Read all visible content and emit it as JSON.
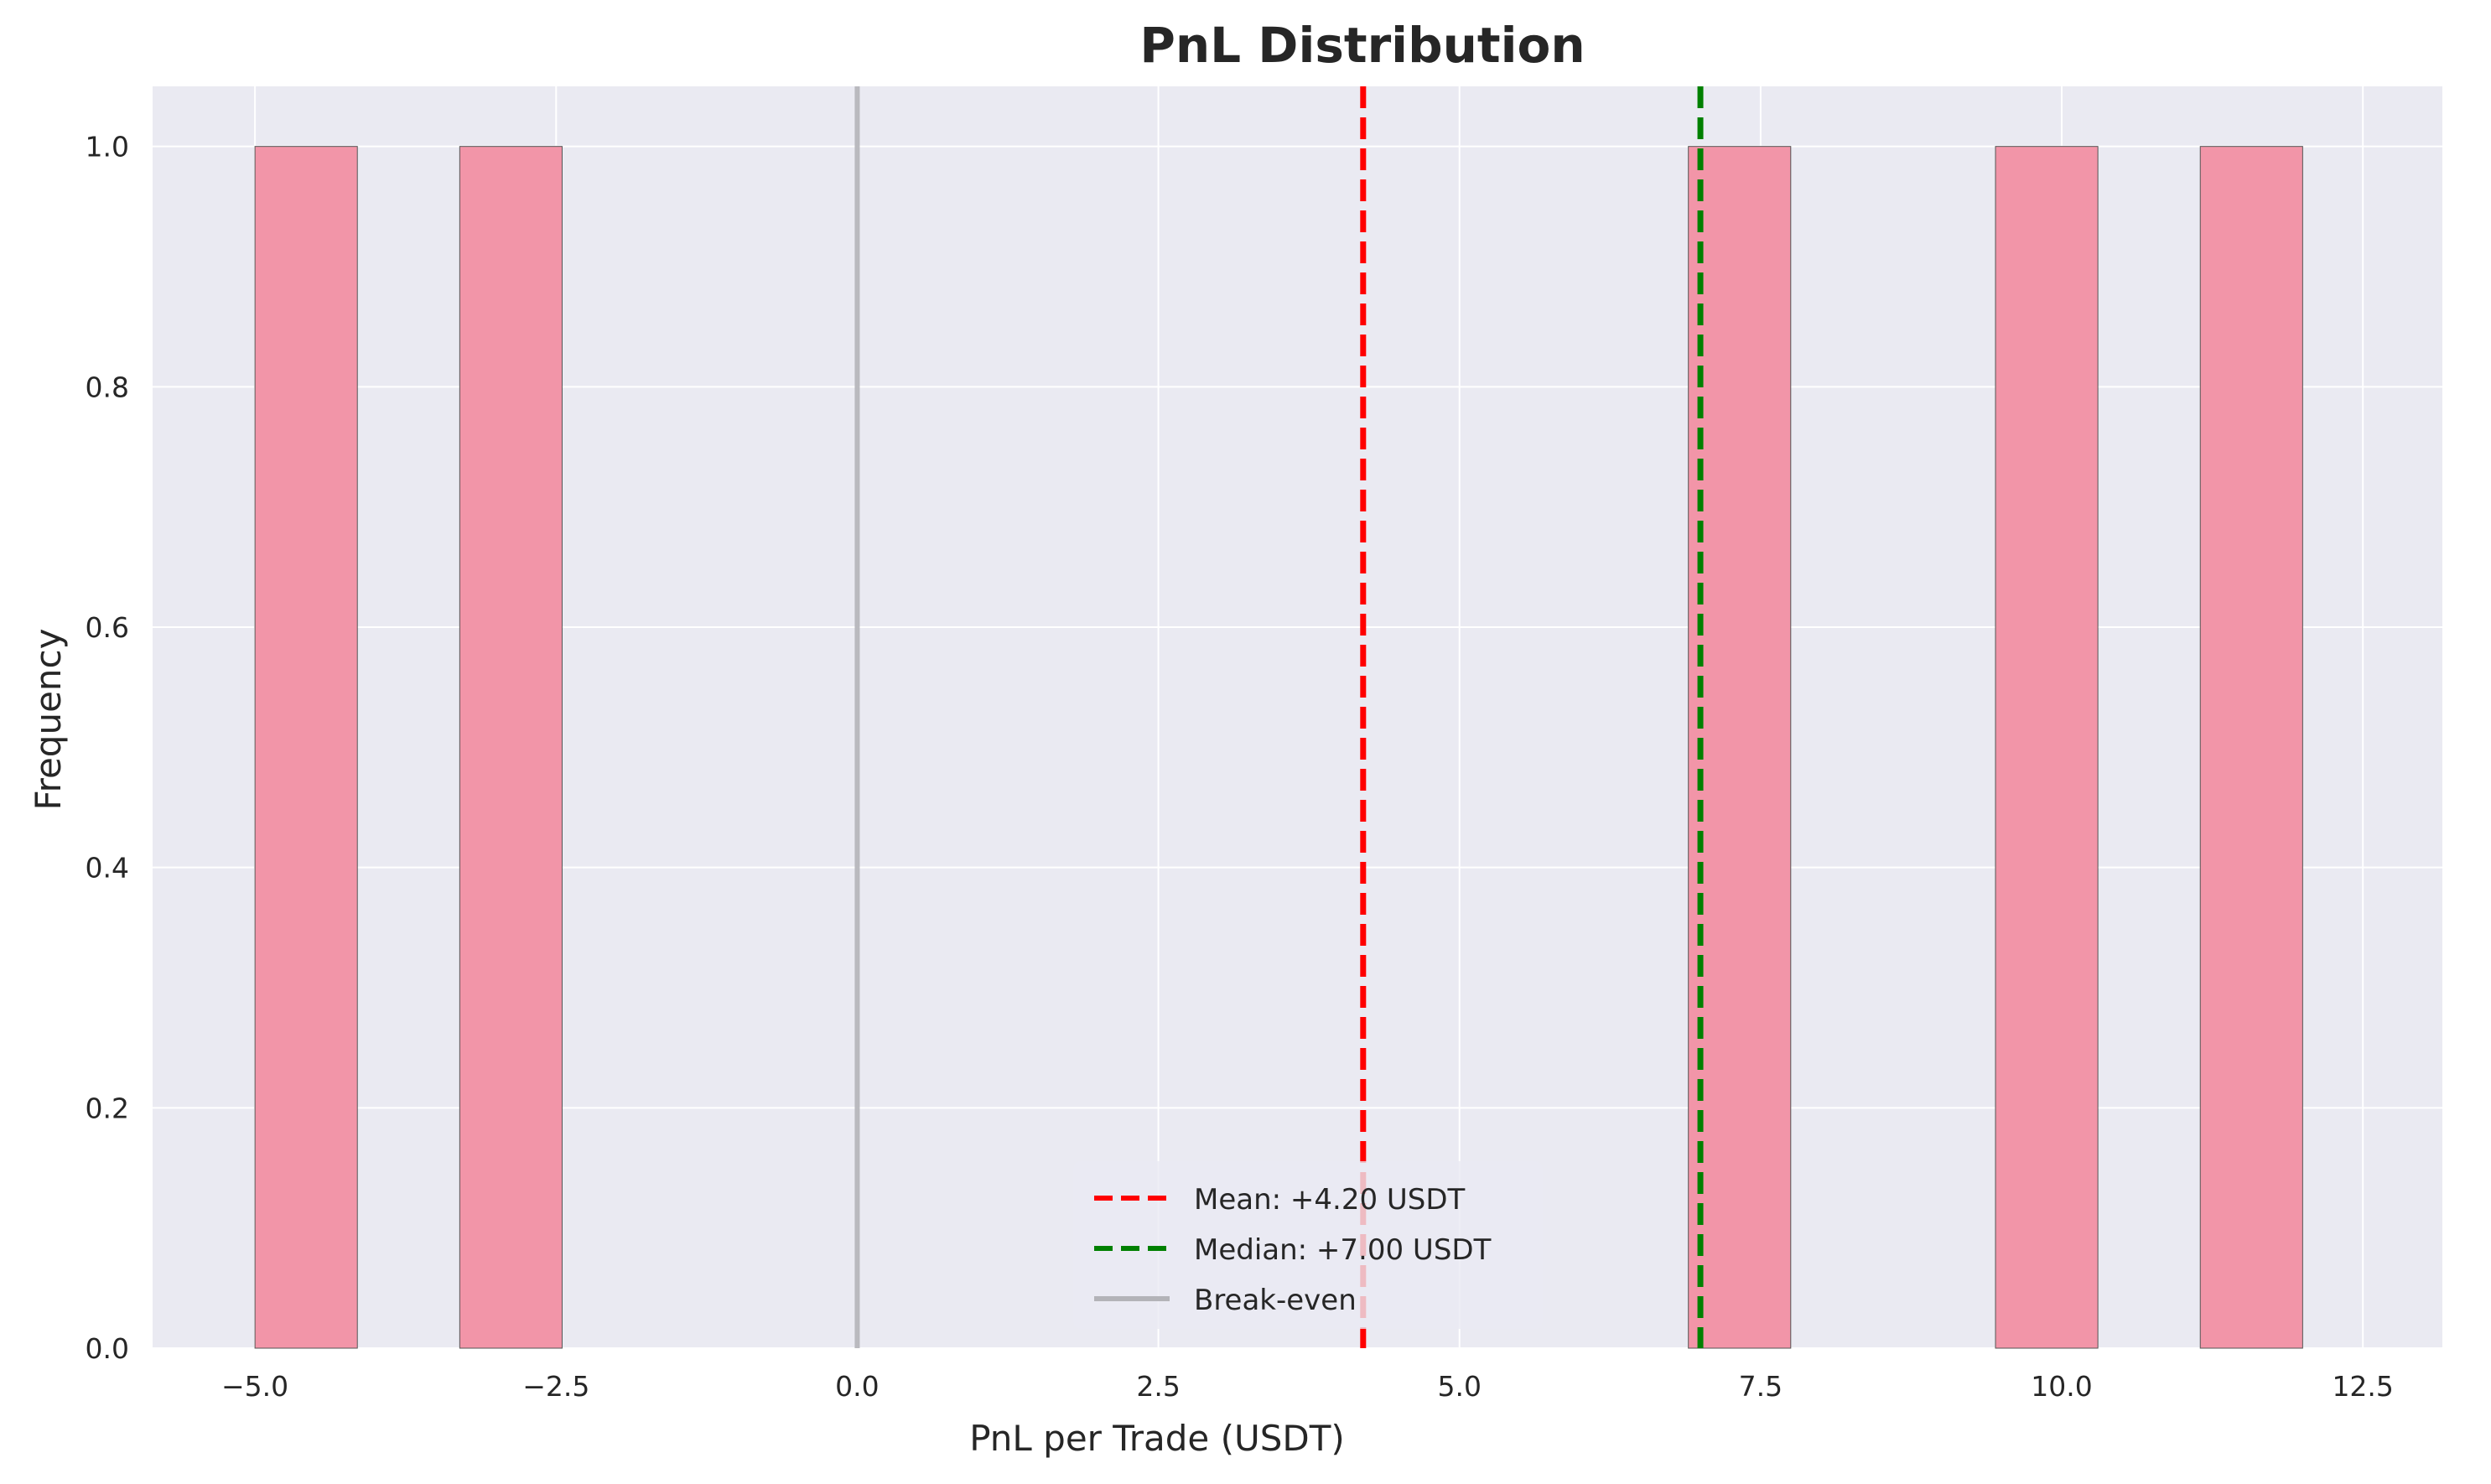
{
  "chart_data": {
    "type": "bar",
    "subtype": "histogram",
    "title": "PnL Distribution",
    "xlabel": "PnL per Trade (USDT)",
    "ylabel": "Frequency",
    "xlim": [
      -5.85,
      13.16
    ],
    "ylim": [
      0,
      1.05
    ],
    "xticks": [
      -5.0,
      -2.5,
      0.0,
      2.5,
      5.0,
      7.5,
      10.0,
      12.5
    ],
    "xtick_labels": [
      "−5.0",
      "−2.5",
      "0.0",
      "2.5",
      "5.0",
      "7.5",
      "10.0",
      "12.5"
    ],
    "yticks": [
      0.0,
      0.2,
      0.4,
      0.6,
      0.8,
      1.0
    ],
    "ytick_labels": [
      "0.0",
      "0.2",
      "0.4",
      "0.6",
      "0.8",
      "1.0"
    ],
    "bins": [
      {
        "x0": -5.0,
        "x1": -4.15,
        "count": 1
      },
      {
        "x0": -3.3,
        "x1": -2.45,
        "count": 1
      },
      {
        "x0": 6.9,
        "x1": 7.75,
        "count": 1
      },
      {
        "x0": 9.45,
        "x1": 10.3,
        "count": 1
      },
      {
        "x0": 11.15,
        "x1": 12.0,
        "count": 1
      }
    ],
    "reference_lines": [
      {
        "name": "Mean: +4.20 USDT",
        "x": 4.2,
        "color": "#ff0000",
        "style": "dashed"
      },
      {
        "name": "Median: +7.00 USDT",
        "x": 7.0,
        "color": "#008000",
        "style": "dashed"
      },
      {
        "name": "Break-even",
        "x": 0.0,
        "color": "#b3b3b8",
        "style": "solid"
      }
    ],
    "legend": {
      "position": "lower-center"
    },
    "grid": true,
    "colors": {
      "bar": "#f295a8",
      "bar_edge": "#555555",
      "plot_bg": "#eaeaf2",
      "grid": "#ffffff"
    }
  }
}
